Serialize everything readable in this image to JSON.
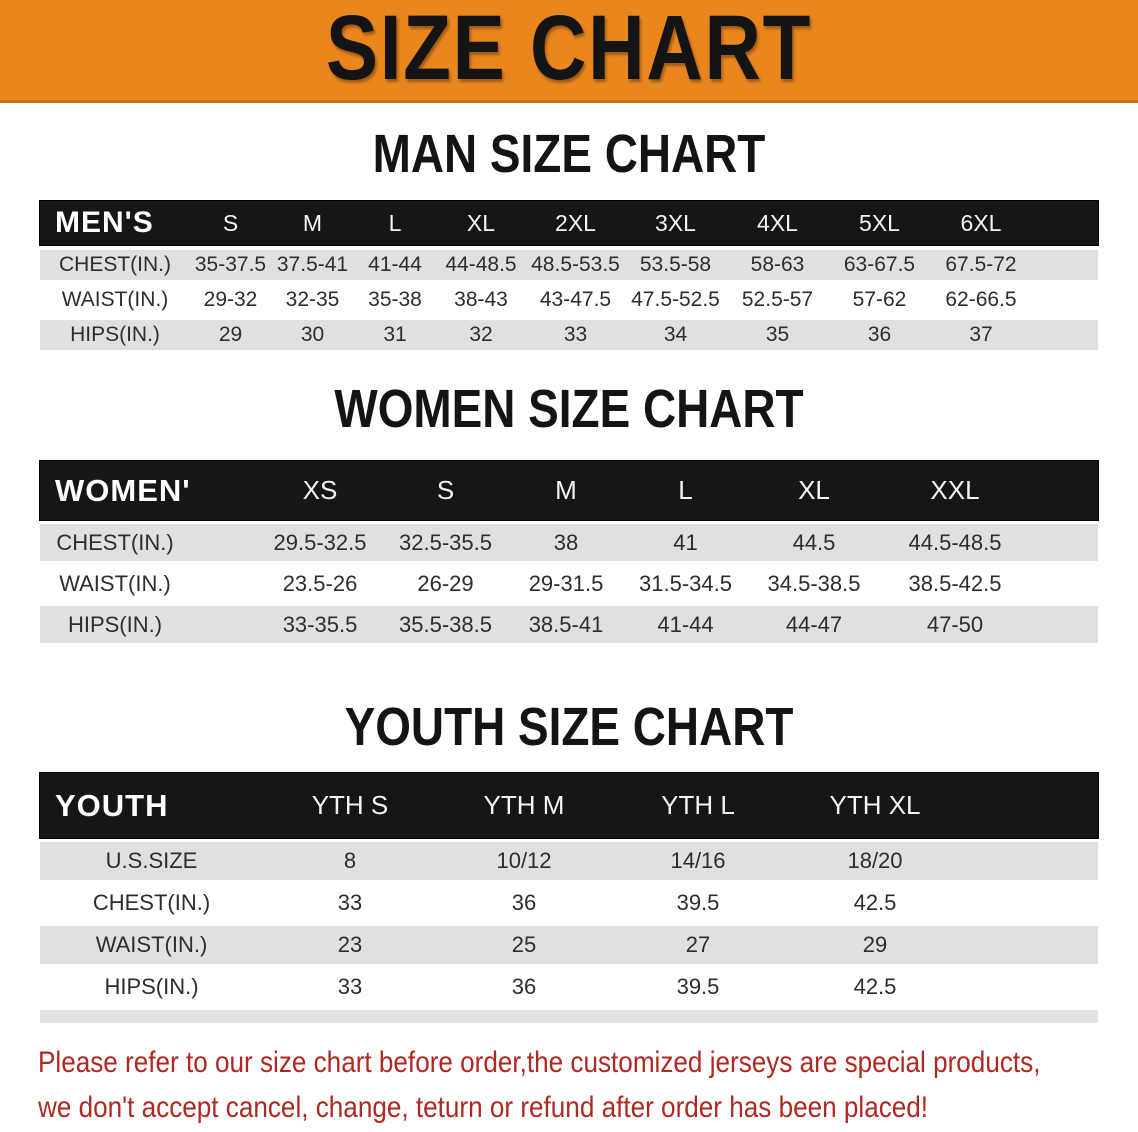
{
  "banner": {
    "title": "SIZE CHART"
  },
  "colors": {
    "banner_bg": "#EA861E",
    "header_bar": "#161616",
    "row_stripe": "#E0E0E0",
    "footer_text": "#AF2922"
  },
  "sections": [
    {
      "id": "men",
      "heading": "MAN SIZE CHART",
      "group_label": "MEN'S",
      "size_columns": [
        "S",
        "M",
        "L",
        "XL",
        "2XL",
        "3XL",
        "4XL",
        "5XL",
        "6XL"
      ],
      "rows": [
        {
          "label": "CHEST(IN.)",
          "values": [
            "35-37.5",
            "37.5-41",
            "41-44",
            "44-48.5",
            "48.5-53.5",
            "53.5-58",
            "58-63",
            "63-67.5",
            "67.5-72"
          ]
        },
        {
          "label": "WAIST(IN.)",
          "values": [
            "29-32",
            "32-35",
            "35-38",
            "38-43",
            "43-47.5",
            "47.5-52.5",
            "52.5-57",
            "57-62",
            "62-66.5"
          ]
        },
        {
          "label": "HIPS(IN.)",
          "values": [
            "29",
            "30",
            "31",
            "32",
            "33",
            "34",
            "35",
            "36",
            "37"
          ]
        }
      ]
    },
    {
      "id": "women",
      "heading": "WOMEN SIZE CHART",
      "group_label": "WOMEN'S",
      "size_columns": [
        "XS",
        "S",
        "M",
        "L",
        "XL",
        "XXL"
      ],
      "rows": [
        {
          "label": "CHEST(IN.)",
          "values": [
            "29.5-32.5",
            "32.5-35.5",
            "38",
            "41",
            "44.5",
            "44.5-48.5"
          ]
        },
        {
          "label": "WAIST(IN.)",
          "values": [
            "23.5-26",
            "26-29",
            "29-31.5",
            "31.5-34.5",
            "34.5-38.5",
            "38.5-42.5"
          ]
        },
        {
          "label": "HIPS(IN.)",
          "values": [
            "33-35.5",
            "35.5-38.5",
            "38.5-41",
            "41-44",
            "44-47",
            "47-50"
          ]
        }
      ]
    },
    {
      "id": "youth",
      "heading": "YOUTH SIZE CHART",
      "group_label": "YOUTH",
      "size_columns": [
        "YTH S",
        "YTH M",
        "YTH L",
        "YTH XL"
      ],
      "rows": [
        {
          "label": "U.S.SIZE",
          "values": [
            "8",
            "10/12",
            "14/16",
            "18/20"
          ]
        },
        {
          "label": "CHEST(IN.)",
          "values": [
            "33",
            "36",
            "39.5",
            "42.5"
          ]
        },
        {
          "label": "WAIST(IN.)",
          "values": [
            "23",
            "25",
            "27",
            "29"
          ]
        },
        {
          "label": "HIPS(IN.)",
          "values": [
            "33",
            "36",
            "39.5",
            "42.5"
          ]
        }
      ]
    }
  ],
  "footer": {
    "line1": "Please refer to our size chart before order,the customized jerseys are special products,",
    "line2": "we don't accept cancel, change, teturn or refund after order has been placed!"
  }
}
